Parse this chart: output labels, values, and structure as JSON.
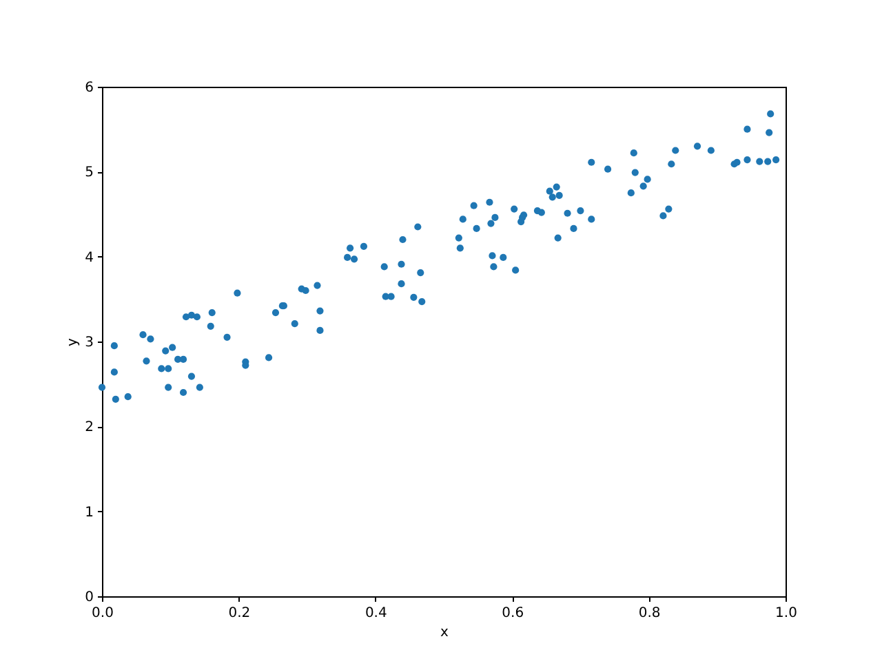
{
  "chart_data": {
    "type": "scatter",
    "xlabel": "x",
    "ylabel": "y",
    "xlim": [
      0,
      1
    ],
    "ylim": [
      0,
      6
    ],
    "xticks": [
      {
        "value": 0,
        "label": "0.0"
      },
      {
        "value": 0.2,
        "label": "0.2"
      },
      {
        "value": 0.4,
        "label": "0.4"
      },
      {
        "value": 0.6,
        "label": "0.6"
      },
      {
        "value": 0.8,
        "label": "0.8"
      },
      {
        "value": 1,
        "label": "1.0"
      }
    ],
    "yticks": [
      0,
      1,
      2,
      3,
      4,
      5,
      6
    ],
    "grid": false,
    "marker": "circle",
    "series": [
      {
        "color": "#1f77b4",
        "x": [
          0,
          0.018,
          0.018,
          0.02,
          0.038,
          0.06,
          0.071,
          0.065,
          0.087,
          0.097,
          0.093,
          0.103,
          0.097,
          0.111,
          0.119,
          0.119,
          0.123,
          0.131,
          0.139,
          0.131,
          0.143,
          0.159,
          0.161,
          0.183,
          0.198,
          0.21,
          0.21,
          0.244,
          0.254,
          0.264,
          0.266,
          0.282,
          0.292,
          0.298,
          0.315,
          0.319,
          0.319,
          0.359,
          0.363,
          0.369,
          0.383,
          0.413,
          0.415,
          0.423,
          0.44,
          0.438,
          0.438,
          0.456,
          0.462,
          0.466,
          0.468,
          0.522,
          0.524,
          0.528,
          0.544,
          0.548,
          0.567,
          0.569,
          0.571,
          0.573,
          0.575,
          0.587,
          0.603,
          0.605,
          0.613,
          0.617,
          0.615,
          0.637,
          0.643,
          0.655,
          0.659,
          0.665,
          0.669,
          0.667,
          0.681,
          0.69,
          0.7,
          0.716,
          0.716,
          0.74,
          0.774,
          0.778,
          0.78,
          0.792,
          0.798,
          0.821,
          0.829,
          0.833,
          0.839,
          0.871,
          0.891,
          0.925,
          0.929,
          0.944,
          0.944,
          0.962,
          0.974,
          0.976,
          0.978,
          0.986
        ],
        "values": [
          2.46,
          2.95,
          2.64,
          2.32,
          2.35,
          3.08,
          3.03,
          2.77,
          2.68,
          2.68,
          2.89,
          2.93,
          2.46,
          2.79,
          2.79,
          2.4,
          3.29,
          3.31,
          3.29,
          2.59,
          2.46,
          3.18,
          3.34,
          3.05,
          3.57,
          2.76,
          2.72,
          2.81,
          3.34,
          3.42,
          3.42,
          3.21,
          3.62,
          3.6,
          3.66,
          3.36,
          3.13,
          3.99,
          4.1,
          3.97,
          4.12,
          3.88,
          3.53,
          3.53,
          4.2,
          3.91,
          3.68,
          3.52,
          4.35,
          3.81,
          3.47,
          4.22,
          4.1,
          4.44,
          4.6,
          4.33,
          4.64,
          4.39,
          4.01,
          3.88,
          4.46,
          3.99,
          4.56,
          3.84,
          4.41,
          4.49,
          4.46,
          4.54,
          4.52,
          4.77,
          4.7,
          4.82,
          4.72,
          4.22,
          4.51,
          4.33,
          4.54,
          4.44,
          5.11,
          5.03,
          4.75,
          5.22,
          4.99,
          4.83,
          4.91,
          4.48,
          4.56,
          5.09,
          5.25,
          5.3,
          5.25,
          5.09,
          5.11,
          5.14,
          5.5,
          5.12,
          5.12,
          5.46,
          5.68,
          5.14
        ]
      }
    ]
  }
}
